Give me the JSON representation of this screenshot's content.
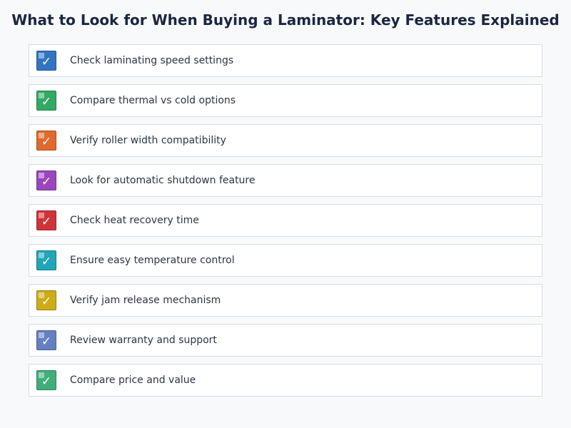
{
  "title": "What to Look for When Buying a Laminator: Key Features Explained",
  "check_glyph": "✓",
  "items": [
    {
      "label": "Check laminating speed settings",
      "color": "#3274c2",
      "icon": "checkmark-icon"
    },
    {
      "label": "Compare thermal vs cold options",
      "color": "#34a865",
      "icon": "checkmark-icon"
    },
    {
      "label": "Verify roller width compatibility",
      "color": "#e06a2c",
      "icon": "checkmark-icon"
    },
    {
      "label": "Look for automatic shutdown feature",
      "color": "#9b46bf",
      "icon": "checkmark-icon"
    },
    {
      "label": "Check heat recovery time",
      "color": "#cf3439",
      "icon": "checkmark-icon"
    },
    {
      "label": "Ensure easy temperature control",
      "color": "#21a5b8",
      "icon": "checkmark-icon"
    },
    {
      "label": "Verify jam release mechanism",
      "color": "#ceab18",
      "icon": "checkmark-icon"
    },
    {
      "label": "Review warranty and support",
      "color": "#6480c2",
      "icon": "checkmark-icon"
    },
    {
      "label": "Compare price and value",
      "color": "#3fae7b",
      "icon": "checkmark-icon"
    }
  ]
}
